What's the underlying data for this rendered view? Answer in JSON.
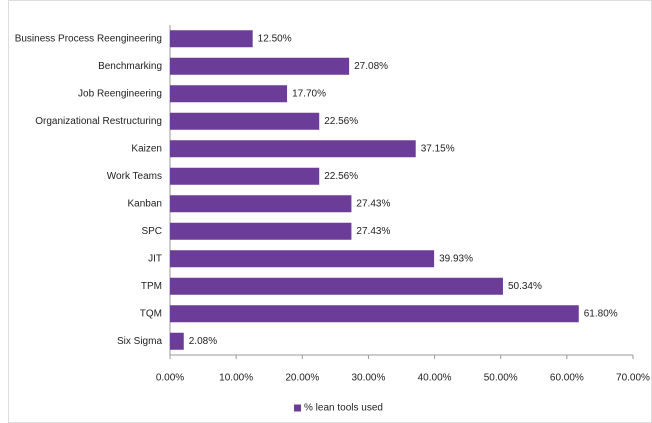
{
  "chart_data": {
    "type": "bar",
    "orientation": "horizontal",
    "categories": [
      "Business Process Reengineering",
      "Benchmarking",
      "Job Reengineering",
      "Organizational Restructuring",
      "Kaizen",
      "Work Teams",
      "Kanban",
      "SPC",
      "JIT",
      "TPM",
      "TQM",
      "Six Sigma"
    ],
    "series": [
      {
        "name": "% lean tools used",
        "color": "#6b3d99",
        "values": [
          12.5,
          27.08,
          17.7,
          22.56,
          37.15,
          22.56,
          27.43,
          27.43,
          39.93,
          50.34,
          61.8,
          2.08
        ],
        "value_labels": [
          "12.50%",
          "27.08%",
          "17.70%",
          "22.56%",
          "37.15%",
          "22.56%",
          "27.43%",
          "27.43%",
          "39.93%",
          "50.34%",
          "61.80%",
          "2.08%"
        ]
      }
    ],
    "xlim": [
      0,
      70
    ],
    "xticks": [
      {
        "value": 0,
        "label": "0.00%"
      },
      {
        "value": 10,
        "label": "10.00%"
      },
      {
        "value": 20,
        "label": "20.00%"
      },
      {
        "value": 30,
        "label": "30.00%"
      },
      {
        "value": 40,
        "label": "40.00%"
      },
      {
        "value": 50,
        "label": "50.00%"
      },
      {
        "value": 60,
        "label": "60.00%"
      },
      {
        "value": 70,
        "label": "70.00%"
      }
    ],
    "grid": false,
    "legend": "bottom"
  }
}
